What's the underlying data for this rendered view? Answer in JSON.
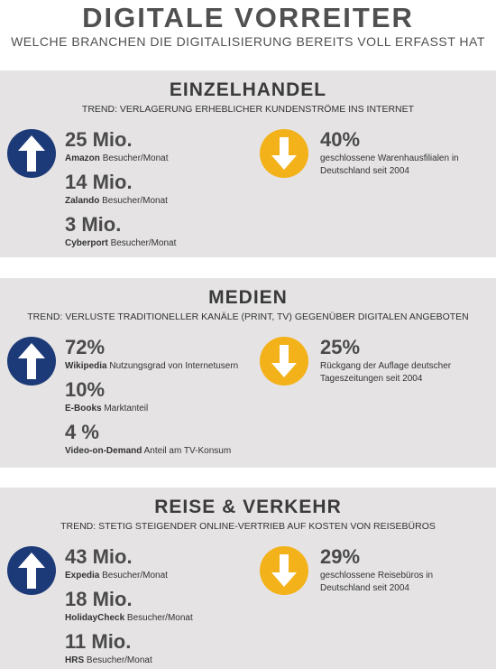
{
  "header": {
    "title": "DIGITALE VORREITER",
    "subtitle": "WELCHE BRANCHEN DIE DIGITALISIERUNG BEREITS VOLL ERFASST HAT"
  },
  "sections": [
    {
      "title": "EINZELHANDEL",
      "trend": "TREND: VERLAGERUNG ERHEBLICHER KUNDENSTRÖME INS INTERNET",
      "up": [
        {
          "value": "25 Mio.",
          "name": "Amazon",
          "text": "Besucher/Monat"
        },
        {
          "value": "14 Mio.",
          "name": "Zalando",
          "text": "Besucher/Monat"
        },
        {
          "value": "3 Mio.",
          "name": "Cyberport",
          "text": "Besucher/Monat"
        }
      ],
      "down": {
        "value": "40%",
        "text": "geschlossene Warenhausfilialen in Deutschland seit 2004"
      }
    },
    {
      "title": "MEDIEN",
      "trend": "TREND: VERLUSTE TRADITIONELLER KANÄLE (PRINT, TV) GEGENÜBER DIGITALEN ANGEBOTEN",
      "up": [
        {
          "value": "72%",
          "name": "Wikipedia",
          "text": "Nutzungsgrad von Internetusern"
        },
        {
          "value": "10%",
          "name": "E-Books",
          "text": "Marktanteil"
        },
        {
          "value": "4 %",
          "name": "Video-on-Demand",
          "text": "Anteil am TV-Konsum"
        }
      ],
      "down": {
        "value": "25%",
        "text": "Rückgang der Auflage deutscher Tageszeitungen seit 2004"
      }
    },
    {
      "title": "REISE & VERKEHR",
      "trend": "TREND: STETIG STEIGENDER ONLINE-VERTRIEB AUF KOSTEN VON REISEBÜROS",
      "up": [
        {
          "value": "43 Mio.",
          "name": "Expedia",
          "text": "Besucher/Monat"
        },
        {
          "value": "18 Mio.",
          "name": "HolidayCheck",
          "text": "Besucher/Monat"
        },
        {
          "value": "11 Mio.",
          "name": "HRS",
          "text": "Besucher/Monat"
        }
      ],
      "down": {
        "value": "29%",
        "text": "geschlossene Reisebüros in Deutschland seit 2004"
      }
    }
  ]
}
